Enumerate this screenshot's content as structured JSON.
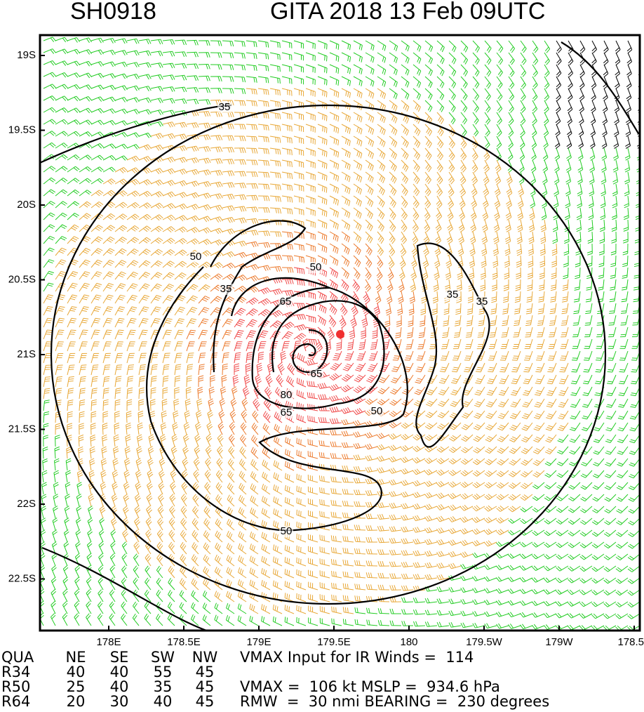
{
  "header": {
    "id": "SH0918",
    "title": "GITA 2018 13 Feb 09UTC"
  },
  "lat_labels": [
    "19S",
    "19.5S",
    "20S",
    "20.5S",
    "21S",
    "21.5S",
    "22S",
    "22.5S"
  ],
  "lon_labels": [
    "178E",
    "178.5E",
    "179E",
    "179.5E",
    "180",
    "179.5W",
    "179W",
    "178.5"
  ],
  "contour_labels": [
    "35",
    "35",
    "35",
    "35",
    "50",
    "50",
    "50",
    "50",
    "65",
    "65",
    "65",
    "80"
  ],
  "table": {
    "header": [
      "QUA",
      "NE",
      "SE",
      "SW",
      "NW"
    ],
    "rows": [
      [
        "R34",
        "40",
        "40",
        "55",
        "45"
      ],
      [
        "R50",
        "25",
        "40",
        "35",
        "45"
      ],
      [
        "R64",
        "20",
        "30",
        "40",
        "45"
      ]
    ]
  },
  "notes": [
    "VMAX Input for IR Winds =  114",
    "VMAX =  106 kt MSLP =  934.6 hPa",
    "RMW  =  30 nmi BEARING =  230 degrees"
  ]
}
